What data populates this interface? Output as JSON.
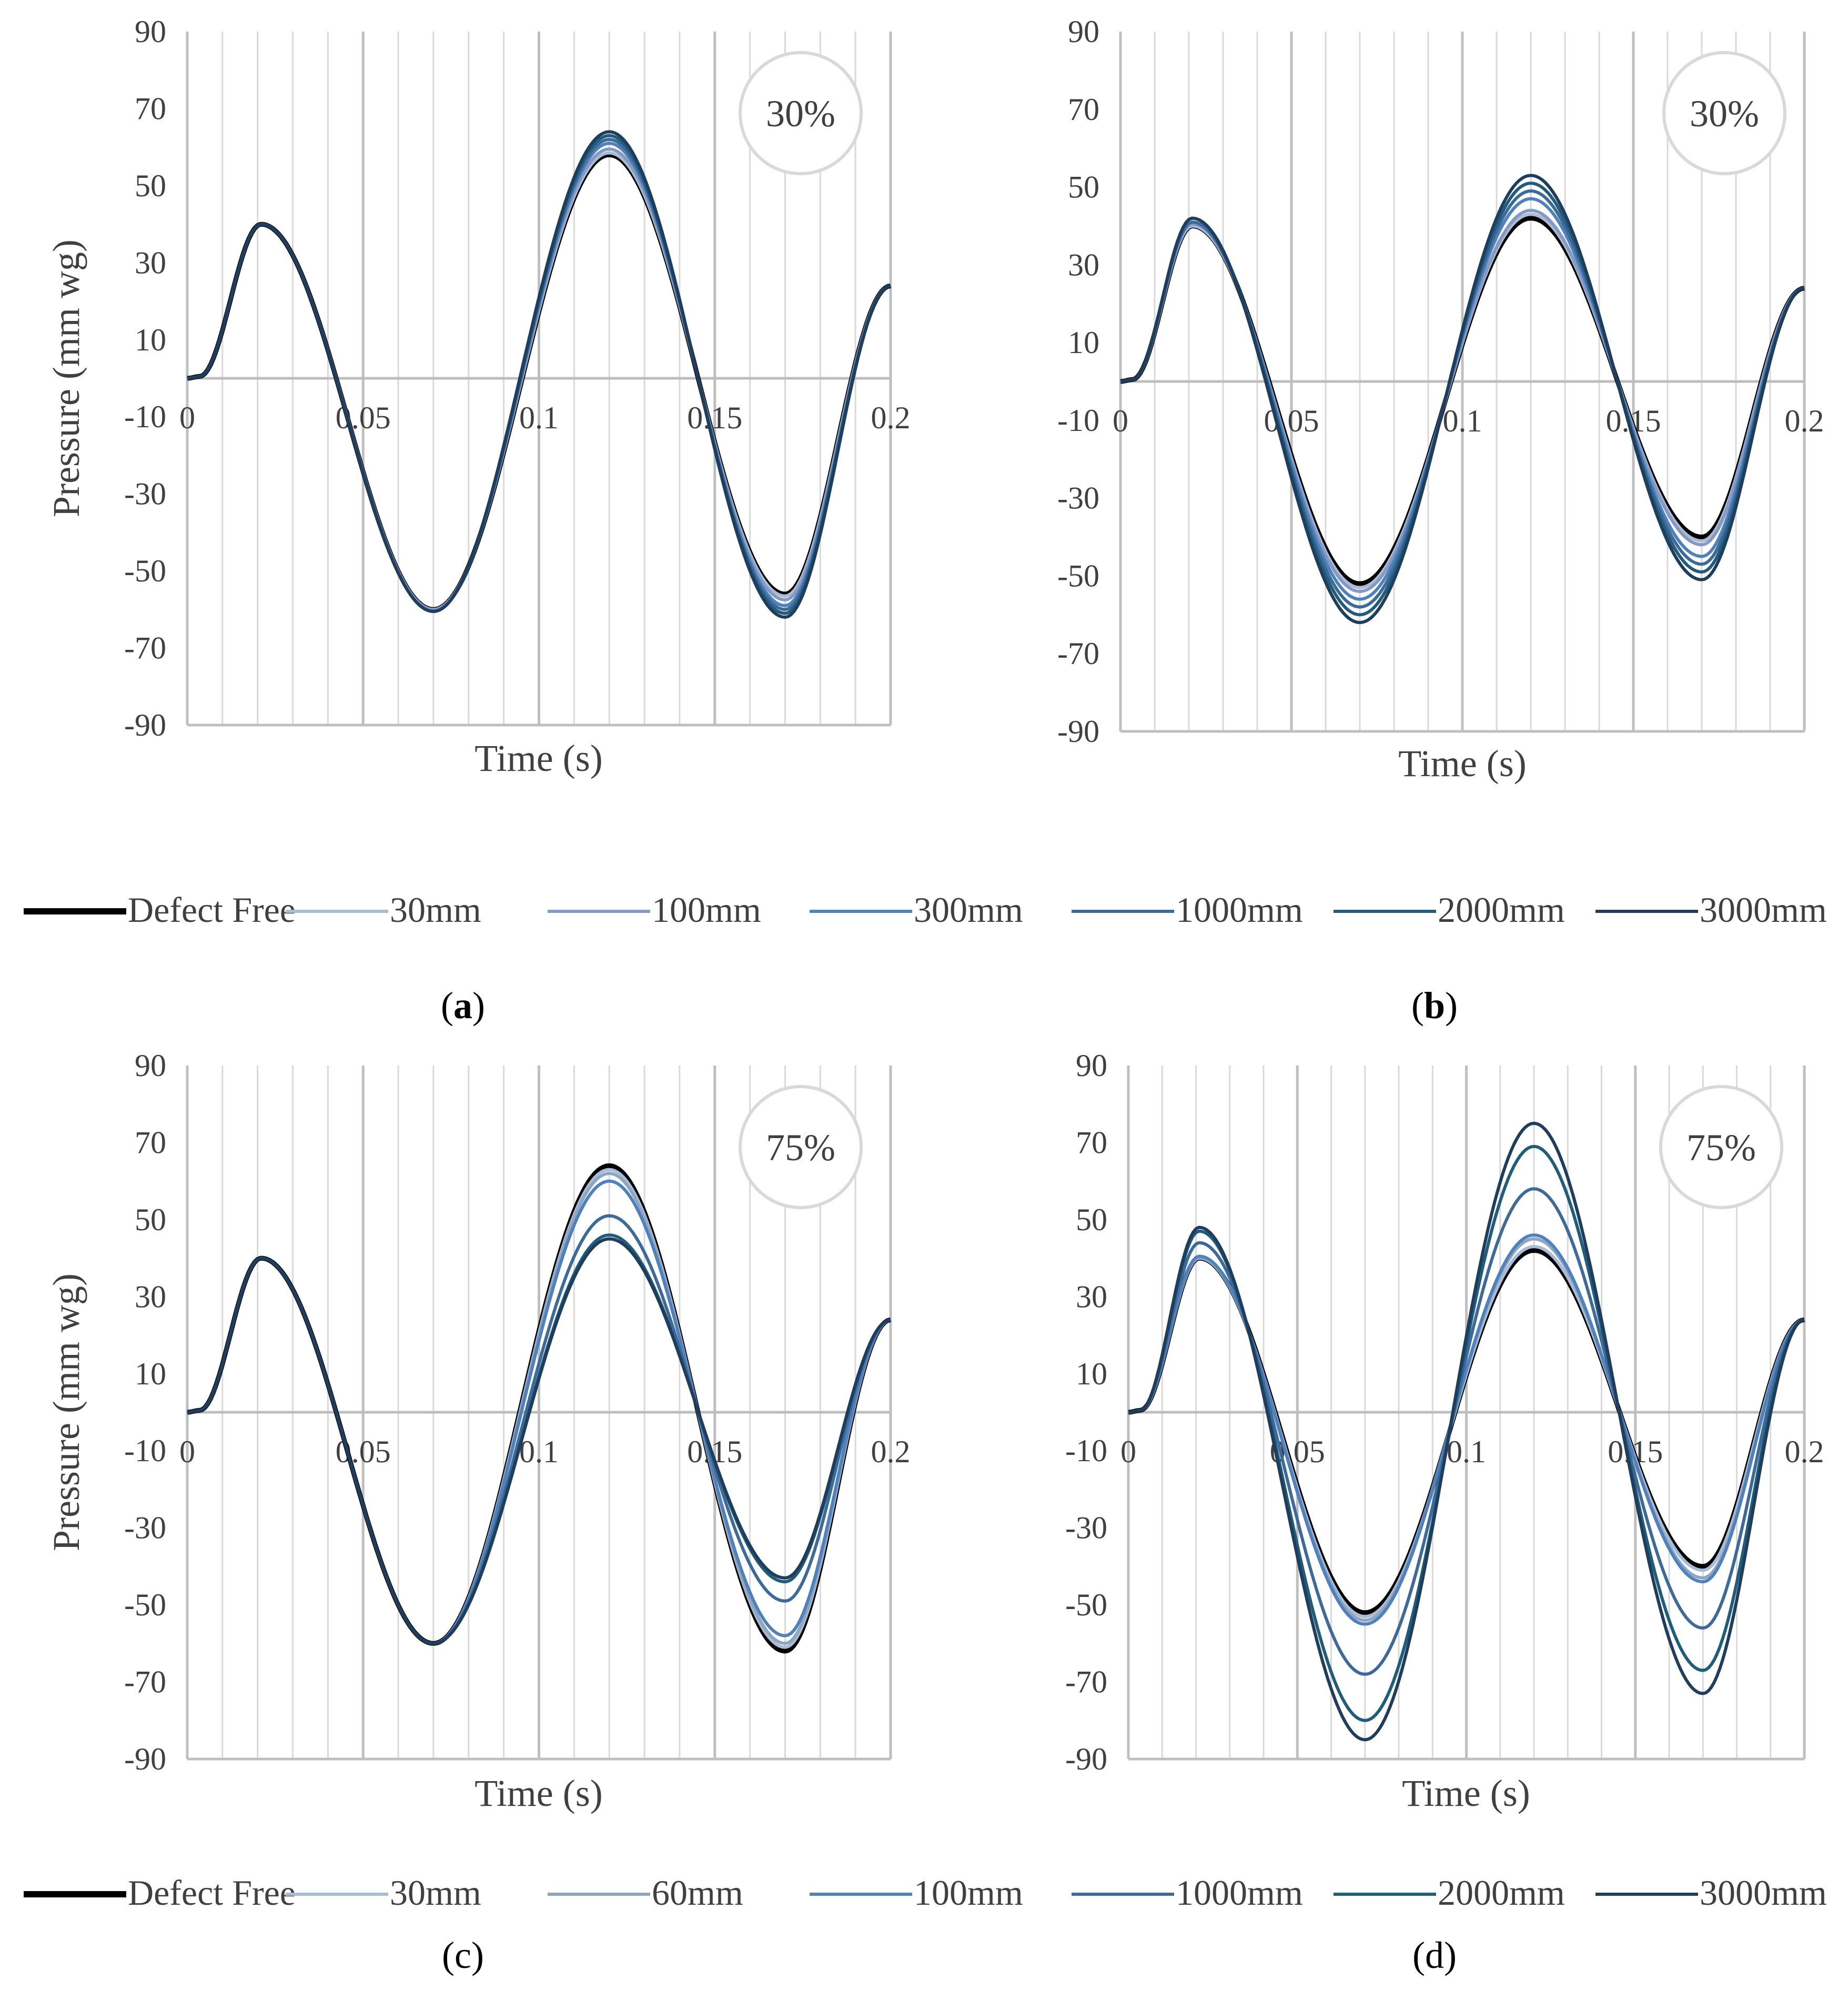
{
  "legend_top": {
    "entries": [
      {
        "label": "Defect Free",
        "color": "#000000"
      },
      {
        "label": "30mm",
        "color": "#a9bcd6"
      },
      {
        "label": "100mm",
        "color": "#8499c4"
      },
      {
        "label": "300mm",
        "color": "#4f81bd"
      },
      {
        "label": "1000mm",
        "color": "#3e6a9a"
      },
      {
        "label": "2000mm",
        "color": "#1f5d7a"
      },
      {
        "label": "3000mm",
        "color": "#1f3d5c"
      }
    ]
  },
  "legend_bottom": {
    "entries": [
      {
        "label": "Defect Free",
        "color": "#000000"
      },
      {
        "label": "30mm",
        "color": "#a9bcd6"
      },
      {
        "label": "60mm",
        "color": "#8fa6c2"
      },
      {
        "label": "100mm",
        "color": "#4f81bd"
      },
      {
        "label": "1000mm",
        "color": "#3e6a9a"
      },
      {
        "label": "2000mm",
        "color": "#1f5d7a"
      },
      {
        "label": "3000mm",
        "color": "#1f3d5c"
      }
    ]
  },
  "panel_labels": {
    "a": {
      "open": "(",
      "letter": "a",
      "close": ")"
    },
    "b": {
      "open": "(",
      "letter": "b",
      "close": ")"
    },
    "c": {
      "open": "(",
      "letter": "c",
      "close": ")"
    },
    "d": {
      "open": "(",
      "letter": "d",
      "close": ")"
    }
  },
  "chart_data": [
    {
      "id": "a",
      "type": "line",
      "badge": "30%",
      "xlabel": "Time (s)",
      "ylabel": "Pressure (mm wg)",
      "xlim": [
        0,
        0.2
      ],
      "ylim": [
        -90,
        90
      ],
      "xticks": [
        "0",
        "0.05",
        "0.1",
        "0.15",
        "0.2"
      ],
      "yticks": [
        "90",
        "70",
        "50",
        "30",
        "10",
        "-10",
        "-30",
        "-50",
        "-70",
        "-90"
      ],
      "grid": true,
      "series": [
        {
          "name": "Defect Free",
          "color": "#000000",
          "a1": 40,
          "a2": 60,
          "a3": 58
        },
        {
          "name": "30mm",
          "color": "#a9bcd6",
          "a1": 40,
          "a2": 60,
          "a3": 58.5
        },
        {
          "name": "100mm",
          "color": "#8499c4",
          "a1": 40,
          "a2": 60,
          "a3": 59.5
        },
        {
          "name": "300mm",
          "color": "#4f81bd",
          "a1": 40,
          "a2": 60.5,
          "a3": 61
        },
        {
          "name": "1000mm",
          "color": "#3e6a9a",
          "a1": 40,
          "a2": 60.5,
          "a3": 62
        },
        {
          "name": "2000mm",
          "color": "#1f5d7a",
          "a1": 40,
          "a2": 60.5,
          "a3": 63
        },
        {
          "name": "3000mm",
          "color": "#1f3d5c",
          "a1": 40,
          "a2": 60.5,
          "a3": 64
        }
      ]
    },
    {
      "id": "b",
      "type": "line",
      "badge": "30%",
      "xlabel": "Time (s)",
      "ylabel": "",
      "xlim": [
        0,
        0.2
      ],
      "ylim": [
        -90,
        90
      ],
      "xticks": [
        "0",
        "0.05",
        "0.1",
        "0.15",
        "0.2"
      ],
      "yticks": [
        "90",
        "70",
        "50",
        "30",
        "10",
        "-10",
        "-30",
        "-50",
        "-70",
        "-90"
      ],
      "grid": true,
      "series": [
        {
          "name": "Defect Free",
          "color": "#000000",
          "a1": 40,
          "a2": 52,
          "a3": 42
        },
        {
          "name": "30mm",
          "color": "#a9bcd6",
          "a1": 40,
          "a2": 53,
          "a3": 43
        },
        {
          "name": "100mm",
          "color": "#8499c4",
          "a1": 40.5,
          "a2": 54,
          "a3": 44
        },
        {
          "name": "300mm",
          "color": "#4f81bd",
          "a1": 41,
          "a2": 56,
          "a3": 47
        },
        {
          "name": "1000mm",
          "color": "#3e6a9a",
          "a1": 41,
          "a2": 58,
          "a3": 49
        },
        {
          "name": "2000mm",
          "color": "#1f5d7a",
          "a1": 42,
          "a2": 60,
          "a3": 51
        },
        {
          "name": "3000mm",
          "color": "#1f3d5c",
          "a1": 42,
          "a2": 62,
          "a3": 53
        }
      ]
    },
    {
      "id": "c",
      "type": "line",
      "badge": "75%",
      "xlabel": "Time (s)",
      "ylabel": "Pressure (mm wg)",
      "xlim": [
        0,
        0.2
      ],
      "ylim": [
        -90,
        90
      ],
      "xticks": [
        "0",
        "0.05",
        "0.1",
        "0.15",
        "0.2"
      ],
      "yticks": [
        "90",
        "70",
        "50",
        "30",
        "10",
        "-10",
        "-30",
        "-50",
        "-70",
        "-90"
      ],
      "grid": true,
      "series": [
        {
          "name": "Defect Free",
          "color": "#000000",
          "a1": 40,
          "a2": 60,
          "a3": 64
        },
        {
          "name": "30mm",
          "color": "#a9bcd6",
          "a1": 40,
          "a2": 60,
          "a3": 63
        },
        {
          "name": "60mm",
          "color": "#8fa6c2",
          "a1": 40,
          "a2": 60,
          "a3": 62
        },
        {
          "name": "100mm",
          "color": "#4f81bd",
          "a1": 40,
          "a2": 60,
          "a3": 60
        },
        {
          "name": "1000mm",
          "color": "#3e6a9a",
          "a1": 40,
          "a2": 60,
          "a3": 51
        },
        {
          "name": "2000mm",
          "color": "#1f5d7a",
          "a1": 40,
          "a2": 60,
          "a3": 46
        },
        {
          "name": "3000mm",
          "color": "#1f3d5c",
          "a1": 40,
          "a2": 60,
          "a3": 45
        }
      ]
    },
    {
      "id": "d",
      "type": "line",
      "badge": "75%",
      "xlabel": "Time (s)",
      "ylabel": "",
      "xlim": [
        0,
        0.2
      ],
      "ylim": [
        -90,
        90
      ],
      "xticks": [
        "0",
        "0.05",
        "0.1",
        "0.15",
        "0.2"
      ],
      "yticks": [
        "90",
        "70",
        "50",
        "30",
        "10",
        "-10",
        "-30",
        "-50",
        "-70",
        "-90"
      ],
      "grid": true,
      "series": [
        {
          "name": "Defect Free",
          "color": "#000000",
          "a1": 40,
          "a2": 52,
          "a3": 42
        },
        {
          "name": "30mm",
          "color": "#a9bcd6",
          "a1": 40,
          "a2": 53,
          "a3": 43
        },
        {
          "name": "60mm",
          "color": "#8fa6c2",
          "a1": 40,
          "a2": 54,
          "a3": 45
        },
        {
          "name": "100mm",
          "color": "#4f81bd",
          "a1": 40.5,
          "a2": 55,
          "a3": 46
        },
        {
          "name": "1000mm",
          "color": "#3e6a9a",
          "a1": 44,
          "a2": 68,
          "a3": 58
        },
        {
          "name": "2000mm",
          "color": "#1f5d7a",
          "a1": 47,
          "a2": 80,
          "a3": 69
        },
        {
          "name": "3000mm",
          "color": "#1f3d5c",
          "a1": 48,
          "a2": 85,
          "a3": 75
        }
      ]
    }
  ]
}
